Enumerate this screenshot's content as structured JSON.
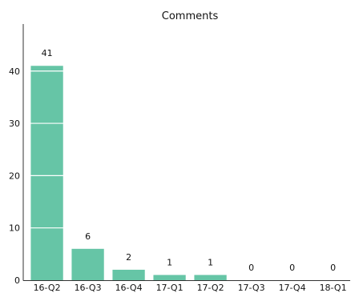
{
  "chart_data": {
    "type": "bar",
    "title": "Comments",
    "xlabel": "",
    "ylabel": "",
    "categories": [
      "16-Q2",
      "16-Q3",
      "16-Q4",
      "17-Q1",
      "17-Q2",
      "17-Q3",
      "17-Q4",
      "18-Q1"
    ],
    "values": [
      41,
      6,
      2,
      1,
      1,
      0,
      0,
      0
    ],
    "data_labels": [
      "41",
      "6",
      "2",
      "1",
      "1",
      "0",
      "0",
      "0"
    ],
    "ylim": [
      0,
      49
    ],
    "yticks": [
      0,
      10,
      20,
      30,
      40
    ],
    "ytick_labels": [
      "0",
      "10",
      "20",
      "30",
      "40"
    ],
    "grid": "horizontal white lines across bars",
    "legend": "none",
    "bar_color": "#66c5a6",
    "gridline_color": "#ffffff",
    "axis_color": "#333333"
  }
}
